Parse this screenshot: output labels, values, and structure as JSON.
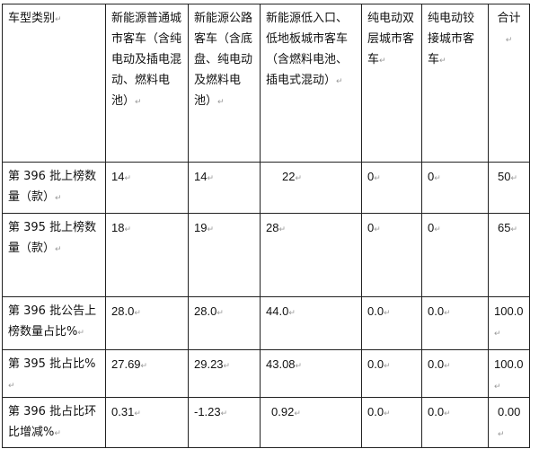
{
  "table": {
    "headers": [
      "车型类别",
      "新能源普通城市客车（含纯电动及插电混动、燃料电池）",
      "新能源公路客车（含底盘、纯电动及燃料电池）",
      "新能源低入口、低地板城市客车（含燃料电池、插电式混动）",
      "纯电动双层城市客车",
      "纯电动铰接城市客车",
      "合计"
    ],
    "rows": [
      [
        "第 396 批上榜数量（款）",
        "14",
        "14",
        "22",
        "0",
        "0",
        "50"
      ],
      [
        "第 395 批上榜数量（款）",
        "18",
        "19",
        "28",
        "0",
        "0",
        "65"
      ],
      [
        "第 396 批公告上榜数量占比%",
        "28.0",
        "28.0",
        "44.0",
        "0.0",
        "0.0",
        "100.0"
      ],
      [
        "第 395 批占比%",
        "27.69",
        "29.23",
        "43.08",
        "0.0",
        "0.0",
        "100.0"
      ],
      [
        "第 396 批占比环比增减%",
        "0.31",
        "-1.23",
        "0.92",
        "0.0",
        "0.0",
        "0.00"
      ]
    ]
  }
}
